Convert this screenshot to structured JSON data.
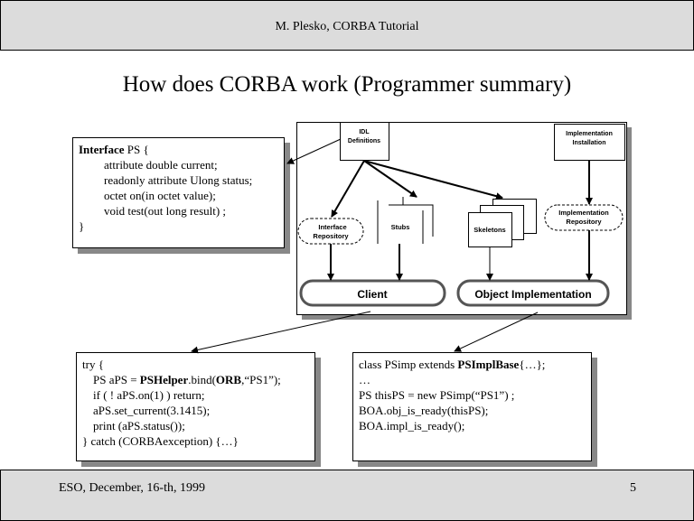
{
  "header": {
    "text": "M. Plesko, CORBA Tutorial"
  },
  "title": "How does CORBA work (Programmer summary)",
  "interface_box": {
    "kw": "Interface",
    "l1": " PS {",
    "lines": [
      "attribute double current;",
      "readonly attribute Ulong status;",
      "octet on(in octet value);",
      "void test(out long result) ;"
    ],
    "close": "}"
  },
  "diagram": {
    "idl": [
      "IDL",
      "Definitions"
    ],
    "impl_install": [
      "Implementation",
      "Installation"
    ],
    "iface_repo": [
      "Interface",
      "Repository"
    ],
    "stubs": "Stubs",
    "skeletons": "Skeletons",
    "impl_repo": [
      "Implementation",
      "Repository"
    ],
    "client": "Client",
    "object_impl": "Object Implementation"
  },
  "client_code": {
    "l0": "try {",
    "l1a": "PS aPS = ",
    "l1b": "PSHelper",
    "l1c": ".bind(",
    "l1d": "ORB",
    "l1e": ",“PS1”);",
    "l2": "if ( ! aPS.on(1) ) return;",
    "l3": "aPS.set_current(3.1415);",
    "l4": "print (aPS.status());",
    "l5": "} catch (CORBAexception) {…}"
  },
  "server_code": {
    "l0a": "class PSimp extends ",
    "l0b": "PSImplBase",
    "l0c": "{…};",
    "l1": "…",
    "l2": "PS thisPS = new PSimp(“PS1”) ;",
    "l3": "BOA.obj_is_ready(thisPS);",
    "l4": "BOA.impl_is_ready();"
  },
  "footer": {
    "left": "ESO, December, 16-th, 1999",
    "page": "5"
  }
}
